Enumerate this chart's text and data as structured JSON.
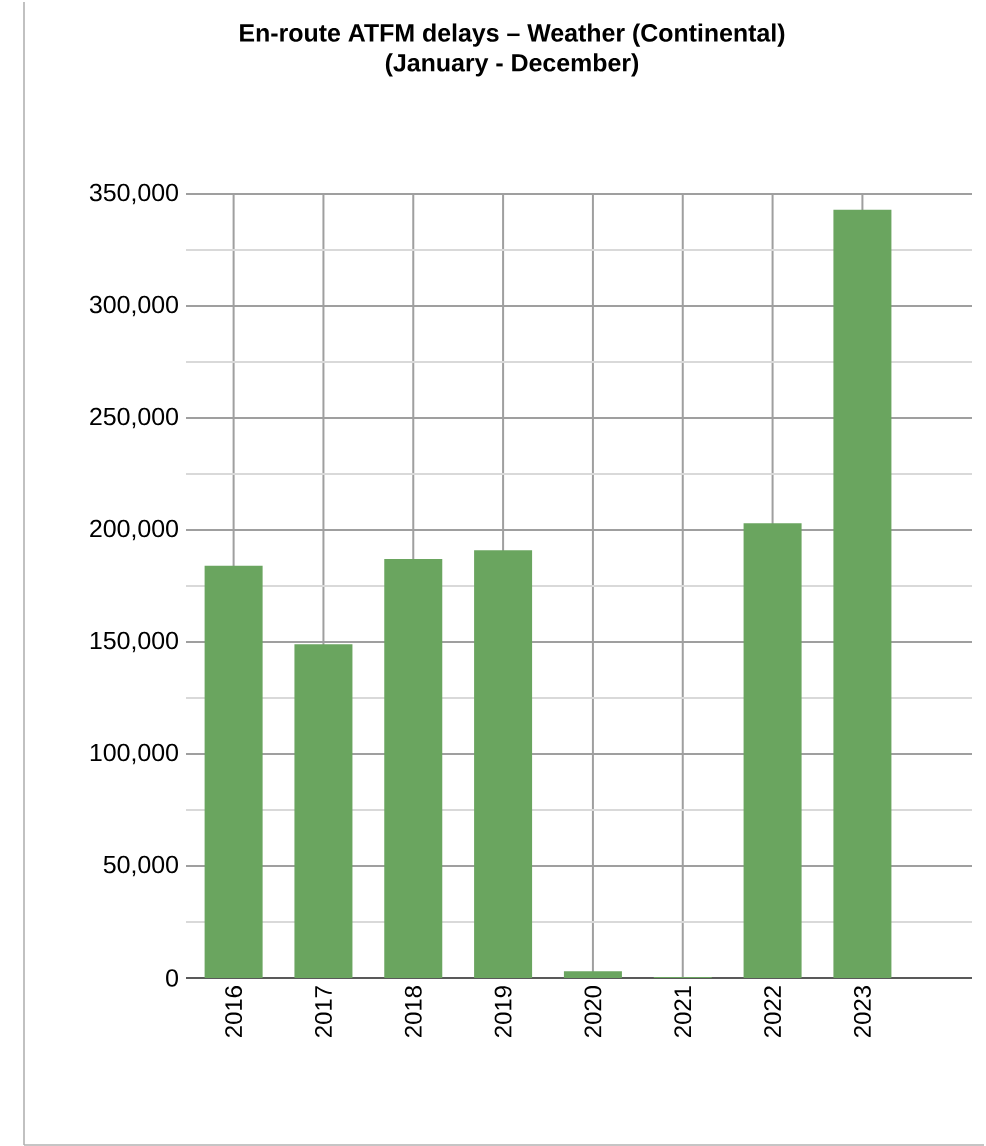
{
  "chart_data": {
    "type": "bar",
    "title": "En-route ATFM delays – Weather (Continental)",
    "subtitle": "(January - December)",
    "categories": [
      "2016",
      "2017",
      "2018",
      "2019",
      "2020",
      "2021",
      "2022",
      "2023"
    ],
    "values": [
      184000,
      149000,
      187000,
      191000,
      3000,
      500,
      203000,
      343000
    ],
    "color": "#6aa55f",
    "ylim": [
      0,
      350000
    ],
    "yticks": [
      {
        "value": 0,
        "label": "0"
      },
      {
        "value": 50000,
        "label": "50,000"
      },
      {
        "value": 100000,
        "label": "100,000"
      },
      {
        "value": 150000,
        "label": "150,000"
      },
      {
        "value": 200000,
        "label": "200,000"
      },
      {
        "value": 250000,
        "label": "250,000"
      },
      {
        "value": 300000,
        "label": "300,000"
      },
      {
        "value": 350000,
        "label": "350,000"
      }
    ],
    "grid": true
  }
}
